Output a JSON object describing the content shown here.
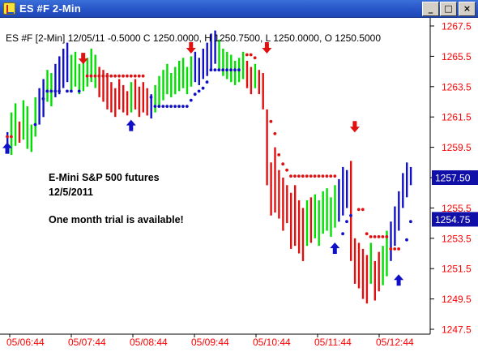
{
  "window": {
    "title": "ES #F 2-Min",
    "minimize_glyph": "_",
    "maximize_glyph": "□",
    "close_glyph": "×"
  },
  "header": {
    "info": "ES #F [2-Min] 12/05/11 -0.5000 C 1250.0000, H 1250.7500, L 1250.0000, O 1250.5000"
  },
  "annotation": {
    "line1": "E-Mini S&P 500 futures",
    "line2": "12/5/2011",
    "line3": "One month trial is available!"
  },
  "colors": {
    "up": "#00e000",
    "down": "#e01010",
    "neutral": "#1010c8",
    "axis_label": "#ff0000",
    "tag_background": "#1010a8",
    "tag_text": "#ffffff"
  },
  "chart_data": {
    "type": "ohlc-bar",
    "y_axis": {
      "min": 1247.5,
      "max": 1267.5,
      "ticks": [
        "1267.5",
        "1265.5",
        "1263.5",
        "1261.5",
        "1259.5",
        "1257.5",
        "1255.5",
        "1253.5",
        "1251.5",
        "1249.5",
        "1247.5"
      ]
    },
    "x_axis": {
      "ticks": [
        "05/06:44",
        "05/07:44",
        "05/08:44",
        "05/09:44",
        "05/10:44",
        "05/11:44",
        "05/12:44"
      ]
    },
    "price_tags": [
      {
        "label": "1257.50",
        "value": 1257.5
      },
      {
        "label": "1254.75",
        "value": 1254.75
      }
    ],
    "bars": [
      {
        "l": 1259.2,
        "h": 1260.5,
        "c": "n"
      },
      {
        "l": 1259.0,
        "h": 1261.8,
        "c": "u"
      },
      {
        "l": 1259.6,
        "h": 1262.4,
        "c": "u"
      },
      {
        "l": 1259.8,
        "h": 1261.2,
        "c": "d"
      },
      {
        "l": 1260.0,
        "h": 1262.6,
        "c": "u"
      },
      {
        "l": 1259.4,
        "h": 1262.2,
        "c": "u"
      },
      {
        "l": 1259.2,
        "h": 1261.0,
        "c": "u"
      },
      {
        "l": 1260.2,
        "h": 1262.8,
        "c": "u"
      },
      {
        "l": 1261.0,
        "h": 1263.4,
        "c": "n"
      },
      {
        "l": 1261.5,
        "h": 1264.0,
        "c": "n"
      },
      {
        "l": 1262.5,
        "h": 1264.6,
        "c": "u"
      },
      {
        "l": 1262.2,
        "h": 1264.4,
        "c": "u"
      },
      {
        "l": 1262.8,
        "h": 1265.0,
        "c": "n"
      },
      {
        "l": 1263.0,
        "h": 1265.5,
        "c": "n"
      },
      {
        "l": 1263.4,
        "h": 1266.0,
        "c": "n"
      },
      {
        "l": 1263.8,
        "h": 1266.4,
        "c": "n"
      },
      {
        "l": 1263.2,
        "h": 1265.6,
        "c": "u"
      },
      {
        "l": 1263.5,
        "h": 1265.8,
        "c": "u"
      },
      {
        "l": 1263.0,
        "h": 1265.0,
        "c": "u"
      },
      {
        "l": 1263.2,
        "h": 1265.2,
        "c": "u"
      },
      {
        "l": 1263.5,
        "h": 1265.4,
        "c": "u"
      },
      {
        "l": 1263.8,
        "h": 1266.0,
        "c": "u"
      },
      {
        "l": 1263.4,
        "h": 1265.6,
        "c": "u"
      },
      {
        "l": 1262.8,
        "h": 1264.8,
        "c": "d"
      },
      {
        "l": 1262.5,
        "h": 1264.6,
        "c": "d"
      },
      {
        "l": 1262.0,
        "h": 1264.4,
        "c": "d"
      },
      {
        "l": 1261.8,
        "h": 1263.8,
        "c": "d"
      },
      {
        "l": 1261.5,
        "h": 1263.4,
        "c": "d"
      },
      {
        "l": 1262.0,
        "h": 1264.0,
        "c": "d"
      },
      {
        "l": 1261.8,
        "h": 1263.6,
        "c": "d"
      },
      {
        "l": 1261.6,
        "h": 1263.2,
        "c": "d"
      },
      {
        "l": 1261.8,
        "h": 1263.8,
        "c": "u"
      },
      {
        "l": 1262.0,
        "h": 1264.0,
        "c": "d"
      },
      {
        "l": 1261.5,
        "h": 1263.5,
        "c": "d"
      },
      {
        "l": 1261.8,
        "h": 1263.8,
        "c": "d"
      },
      {
        "l": 1261.6,
        "h": 1263.4,
        "c": "d"
      },
      {
        "l": 1261.4,
        "h": 1263.0,
        "c": "n"
      },
      {
        "l": 1261.8,
        "h": 1263.6,
        "c": "u"
      },
      {
        "l": 1262.2,
        "h": 1264.2,
        "c": "u"
      },
      {
        "l": 1262.6,
        "h": 1264.6,
        "c": "u"
      },
      {
        "l": 1263.0,
        "h": 1265.0,
        "c": "u"
      },
      {
        "l": 1262.8,
        "h": 1264.4,
        "c": "u"
      },
      {
        "l": 1263.0,
        "h": 1264.8,
        "c": "u"
      },
      {
        "l": 1263.2,
        "h": 1265.2,
        "c": "u"
      },
      {
        "l": 1263.4,
        "h": 1265.4,
        "c": "u"
      },
      {
        "l": 1263.0,
        "h": 1264.8,
        "c": "u"
      },
      {
        "l": 1263.5,
        "h": 1265.5,
        "c": "u"
      },
      {
        "l": 1263.8,
        "h": 1265.8,
        "c": "n"
      },
      {
        "l": 1263.6,
        "h": 1265.4,
        "c": "n"
      },
      {
        "l": 1264.0,
        "h": 1266.0,
        "c": "n"
      },
      {
        "l": 1264.2,
        "h": 1266.4,
        "c": "n"
      },
      {
        "l": 1264.6,
        "h": 1267.0,
        "c": "n"
      },
      {
        "l": 1265.0,
        "h": 1267.2,
        "c": "n"
      },
      {
        "l": 1264.6,
        "h": 1266.6,
        "c": "u"
      },
      {
        "l": 1264.2,
        "h": 1266.0,
        "c": "u"
      },
      {
        "l": 1264.0,
        "h": 1265.8,
        "c": "u"
      },
      {
        "l": 1263.8,
        "h": 1265.6,
        "c": "u"
      },
      {
        "l": 1263.6,
        "h": 1265.2,
        "c": "u"
      },
      {
        "l": 1263.8,
        "h": 1265.4,
        "c": "u"
      },
      {
        "l": 1264.0,
        "h": 1265.8,
        "c": "u"
      },
      {
        "l": 1263.4,
        "h": 1265.2,
        "c": "d"
      },
      {
        "l": 1263.0,
        "h": 1264.8,
        "c": "d"
      },
      {
        "l": 1263.4,
        "h": 1265.0,
        "c": "u"
      },
      {
        "l": 1263.0,
        "h": 1264.6,
        "c": "d"
      },
      {
        "l": 1262.0,
        "h": 1264.4,
        "c": "d"
      },
      {
        "l": 1257.0,
        "h": 1262.0,
        "c": "d"
      },
      {
        "l": 1255.0,
        "h": 1258.5,
        "c": "d"
      },
      {
        "l": 1255.2,
        "h": 1259.5,
        "c": "d"
      },
      {
        "l": 1254.8,
        "h": 1258.0,
        "c": "d"
      },
      {
        "l": 1254.0,
        "h": 1257.5,
        "c": "d"
      },
      {
        "l": 1254.5,
        "h": 1257.0,
        "c": "d"
      },
      {
        "l": 1252.8,
        "h": 1256.5,
        "c": "d"
      },
      {
        "l": 1253.0,
        "h": 1257.0,
        "c": "d"
      },
      {
        "l": 1252.5,
        "h": 1256.0,
        "c": "d"
      },
      {
        "l": 1252.0,
        "h": 1255.5,
        "c": "d"
      },
      {
        "l": 1253.0,
        "h": 1256.0,
        "c": "u"
      },
      {
        "l": 1253.2,
        "h": 1256.2,
        "c": "d"
      },
      {
        "l": 1253.5,
        "h": 1256.4,
        "c": "u"
      },
      {
        "l": 1253.0,
        "h": 1256.0,
        "c": "u"
      },
      {
        "l": 1253.8,
        "h": 1256.6,
        "c": "u"
      },
      {
        "l": 1254.0,
        "h": 1256.8,
        "c": "u"
      },
      {
        "l": 1253.6,
        "h": 1256.2,
        "c": "u"
      },
      {
        "l": 1254.2,
        "h": 1257.0,
        "c": "u"
      },
      {
        "l": 1254.6,
        "h": 1257.4,
        "c": "n"
      },
      {
        "l": 1255.0,
        "h": 1258.2,
        "c": "n"
      },
      {
        "l": 1255.5,
        "h": 1258.0,
        "c": "n"
      },
      {
        "l": 1252.0,
        "h": 1258.6,
        "c": "d"
      },
      {
        "l": 1250.5,
        "h": 1253.5,
        "c": "d"
      },
      {
        "l": 1250.2,
        "h": 1253.2,
        "c": "d"
      },
      {
        "l": 1249.5,
        "h": 1252.8,
        "c": "d"
      },
      {
        "l": 1249.2,
        "h": 1252.4,
        "c": "d"
      },
      {
        "l": 1250.5,
        "h": 1253.2,
        "c": "u"
      },
      {
        "l": 1249.4,
        "h": 1252.0,
        "c": "d"
      },
      {
        "l": 1250.0,
        "h": 1252.6,
        "c": "d"
      },
      {
        "l": 1250.4,
        "h": 1253.0,
        "c": "u"
      },
      {
        "l": 1251.0,
        "h": 1254.0,
        "c": "u"
      },
      {
        "l": 1252.0,
        "h": 1254.6,
        "c": "n"
      },
      {
        "l": 1253.0,
        "h": 1255.6,
        "c": "n"
      },
      {
        "l": 1254.0,
        "h": 1256.6,
        "c": "n"
      },
      {
        "l": 1255.5,
        "h": 1257.8,
        "c": "n"
      },
      {
        "l": 1256.2,
        "h": 1258.5,
        "c": "n"
      },
      {
        "l": 1257.0,
        "h": 1258.2,
        "c": "n"
      }
    ],
    "stops": [
      {
        "i": 0,
        "v": 1260.2,
        "c": "d"
      },
      {
        "i": 1,
        "v": 1260.2,
        "c": "d"
      },
      {
        "i": 7,
        "v": 1261.0,
        "c": "n"
      },
      {
        "i": 9,
        "v": 1262.7,
        "c": "n"
      },
      {
        "i": 10,
        "v": 1263.2,
        "c": "n"
      },
      {
        "i": 11,
        "v": 1263.2,
        "c": "n"
      },
      {
        "i": 12,
        "v": 1263.2,
        "c": "n"
      },
      {
        "i": 13,
        "v": 1263.2,
        "c": "n"
      },
      {
        "i": 15,
        "v": 1263.2,
        "c": "n"
      },
      {
        "i": 16,
        "v": 1263.2,
        "c": "n"
      },
      {
        "i": 18,
        "v": 1263.2,
        "c": "n"
      },
      {
        "i": 20,
        "v": 1264.2,
        "c": "d"
      },
      {
        "i": 21,
        "v": 1264.2,
        "c": "d"
      },
      {
        "i": 22,
        "v": 1264.2,
        "c": "d"
      },
      {
        "i": 23,
        "v": 1264.2,
        "c": "d"
      },
      {
        "i": 24,
        "v": 1264.2,
        "c": "d"
      },
      {
        "i": 25,
        "v": 1264.2,
        "c": "d"
      },
      {
        "i": 26,
        "v": 1264.2,
        "c": "d"
      },
      {
        "i": 27,
        "v": 1264.2,
        "c": "d"
      },
      {
        "i": 28,
        "v": 1264.2,
        "c": "d"
      },
      {
        "i": 29,
        "v": 1264.2,
        "c": "d"
      },
      {
        "i": 30,
        "v": 1264.2,
        "c": "d"
      },
      {
        "i": 31,
        "v": 1264.2,
        "c": "d"
      },
      {
        "i": 32,
        "v": 1264.2,
        "c": "d"
      },
      {
        "i": 33,
        "v": 1264.2,
        "c": "d"
      },
      {
        "i": 34,
        "v": 1264.2,
        "c": "d"
      },
      {
        "i": 36,
        "v": 1262.8,
        "c": "n"
      },
      {
        "i": 37,
        "v": 1262.2,
        "c": "n"
      },
      {
        "i": 38,
        "v": 1262.2,
        "c": "n"
      },
      {
        "i": 39,
        "v": 1262.2,
        "c": "n"
      },
      {
        "i": 40,
        "v": 1262.2,
        "c": "n"
      },
      {
        "i": 41,
        "v": 1262.2,
        "c": "n"
      },
      {
        "i": 42,
        "v": 1262.2,
        "c": "n"
      },
      {
        "i": 43,
        "v": 1262.2,
        "c": "n"
      },
      {
        "i": 44,
        "v": 1262.2,
        "c": "n"
      },
      {
        "i": 45,
        "v": 1262.2,
        "c": "n"
      },
      {
        "i": 46,
        "v": 1262.6,
        "c": "n"
      },
      {
        "i": 47,
        "v": 1263.0,
        "c": "n"
      },
      {
        "i": 48,
        "v": 1263.2,
        "c": "n"
      },
      {
        "i": 49,
        "v": 1263.4,
        "c": "n"
      },
      {
        "i": 50,
        "v": 1263.8,
        "c": "n"
      },
      {
        "i": 51,
        "v": 1264.6,
        "c": "n"
      },
      {
        "i": 52,
        "v": 1264.6,
        "c": "n"
      },
      {
        "i": 53,
        "v": 1264.6,
        "c": "n"
      },
      {
        "i": 54,
        "v": 1264.6,
        "c": "n"
      },
      {
        "i": 55,
        "v": 1264.6,
        "c": "n"
      },
      {
        "i": 56,
        "v": 1264.6,
        "c": "n"
      },
      {
        "i": 57,
        "v": 1264.6,
        "c": "n"
      },
      {
        "i": 58,
        "v": 1264.6,
        "c": "n"
      },
      {
        "i": 60,
        "v": 1265.6,
        "c": "d"
      },
      {
        "i": 61,
        "v": 1265.6,
        "c": "d"
      },
      {
        "i": 62,
        "v": 1265.4,
        "c": "d"
      },
      {
        "i": 66,
        "v": 1261.2,
        "c": "d"
      },
      {
        "i": 67,
        "v": 1260.4,
        "c": "d"
      },
      {
        "i": 68,
        "v": 1259.0,
        "c": "d"
      },
      {
        "i": 69,
        "v": 1258.4,
        "c": "d"
      },
      {
        "i": 70,
        "v": 1258.0,
        "c": "d"
      },
      {
        "i": 71,
        "v": 1257.6,
        "c": "d"
      },
      {
        "i": 72,
        "v": 1257.6,
        "c": "d"
      },
      {
        "i": 73,
        "v": 1257.6,
        "c": "d"
      },
      {
        "i": 74,
        "v": 1257.6,
        "c": "d"
      },
      {
        "i": 75,
        "v": 1257.6,
        "c": "d"
      },
      {
        "i": 76,
        "v": 1257.6,
        "c": "d"
      },
      {
        "i": 77,
        "v": 1257.6,
        "c": "d"
      },
      {
        "i": 78,
        "v": 1257.6,
        "c": "d"
      },
      {
        "i": 79,
        "v": 1257.6,
        "c": "d"
      },
      {
        "i": 80,
        "v": 1257.6,
        "c": "d"
      },
      {
        "i": 81,
        "v": 1257.6,
        "c": "d"
      },
      {
        "i": 82,
        "v": 1257.6,
        "c": "d"
      },
      {
        "i": 84,
        "v": 1253.8,
        "c": "n"
      },
      {
        "i": 85,
        "v": 1254.6,
        "c": "n"
      },
      {
        "i": 86,
        "v": 1255.0,
        "c": "n"
      },
      {
        "i": 88,
        "v": 1255.4,
        "c": "d"
      },
      {
        "i": 89,
        "v": 1255.4,
        "c": "d"
      },
      {
        "i": 90,
        "v": 1253.8,
        "c": "d"
      },
      {
        "i": 91,
        "v": 1253.6,
        "c": "d"
      },
      {
        "i": 92,
        "v": 1253.6,
        "c": "d"
      },
      {
        "i": 93,
        "v": 1253.6,
        "c": "d"
      },
      {
        "i": 94,
        "v": 1253.6,
        "c": "d"
      },
      {
        "i": 95,
        "v": 1253.6,
        "c": "d"
      },
      {
        "i": 96,
        "v": 1252.8,
        "c": "d"
      },
      {
        "i": 97,
        "v": 1252.8,
        "c": "d"
      },
      {
        "i": 98,
        "v": 1252.8,
        "c": "d"
      },
      {
        "i": 100,
        "v": 1253.4,
        "c": "n"
      },
      {
        "i": 101,
        "v": 1254.6,
        "c": "n"
      }
    ],
    "arrows": [
      {
        "i": 0,
        "v": 1259.5,
        "dir": "up"
      },
      {
        "i": 19,
        "v": 1265.3,
        "dir": "down"
      },
      {
        "i": 31,
        "v": 1261.0,
        "dir": "up"
      },
      {
        "i": 46,
        "v": 1266.0,
        "dir": "down"
      },
      {
        "i": 65,
        "v": 1266.0,
        "dir": "down"
      },
      {
        "i": 82,
        "v": 1252.9,
        "dir": "up"
      },
      {
        "i": 87,
        "v": 1260.8,
        "dir": "down"
      },
      {
        "i": 98,
        "v": 1250.8,
        "dir": "up"
      }
    ]
  }
}
